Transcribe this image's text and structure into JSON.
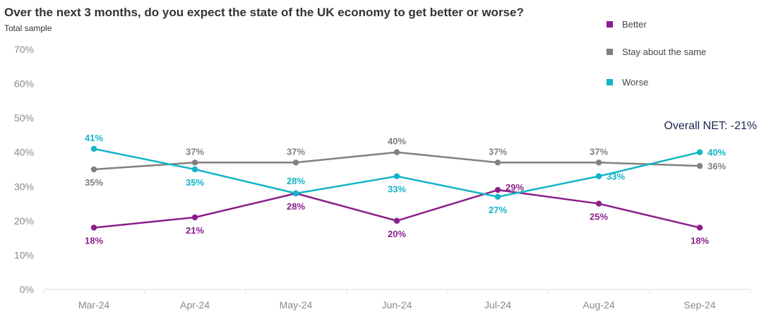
{
  "chart_data": {
    "type": "line",
    "title": "Over the next 3 months, do you expect the state of the UK economy to get better or worse?",
    "subtitle": "Total sample",
    "categories": [
      "Mar-24",
      "Apr-24",
      "May-24",
      "Jun-24",
      "Jul-24",
      "Aug-24",
      "Sep-24"
    ],
    "ylim": [
      0,
      70
    ],
    "yticks": [
      0,
      10,
      20,
      30,
      40,
      50,
      60,
      70
    ],
    "ytick_labels": [
      "0%",
      "10%",
      "20%",
      "30%",
      "40%",
      "50%",
      "60%",
      "70%"
    ],
    "grid": false,
    "legend_position": "top-right",
    "series": [
      {
        "name": "Better",
        "color": "#8b1f8c",
        "values": [
          18,
          21,
          28,
          20,
          29,
          25,
          18
        ],
        "labels": [
          "18%",
          "21%",
          "28%",
          "20%",
          "29%",
          "25%",
          "18%"
        ],
        "label_side": [
          "below",
          "below",
          "below",
          "below",
          "right",
          "below",
          "below"
        ]
      },
      {
        "name": "Stay about the same",
        "color": "#808080",
        "values": [
          35,
          37,
          37,
          40,
          37,
          37,
          36
        ],
        "labels": [
          "35%",
          "37%",
          "37%",
          "40%",
          "37%",
          "37%",
          "36%"
        ],
        "label_side": [
          "below",
          "above",
          "above",
          "above",
          "above",
          "above",
          "right"
        ]
      },
      {
        "name": "Worse",
        "color": "#12b4c8",
        "values": [
          41,
          35,
          28,
          33,
          27,
          33,
          40
        ],
        "labels": [
          "41%",
          "35%",
          "28%",
          "33%",
          "27%",
          "33%",
          "40%"
        ],
        "label_side": [
          "above",
          "below",
          "above",
          "below",
          "below",
          "right",
          "right"
        ]
      }
    ],
    "annotation": "Overall NET: -21%"
  }
}
